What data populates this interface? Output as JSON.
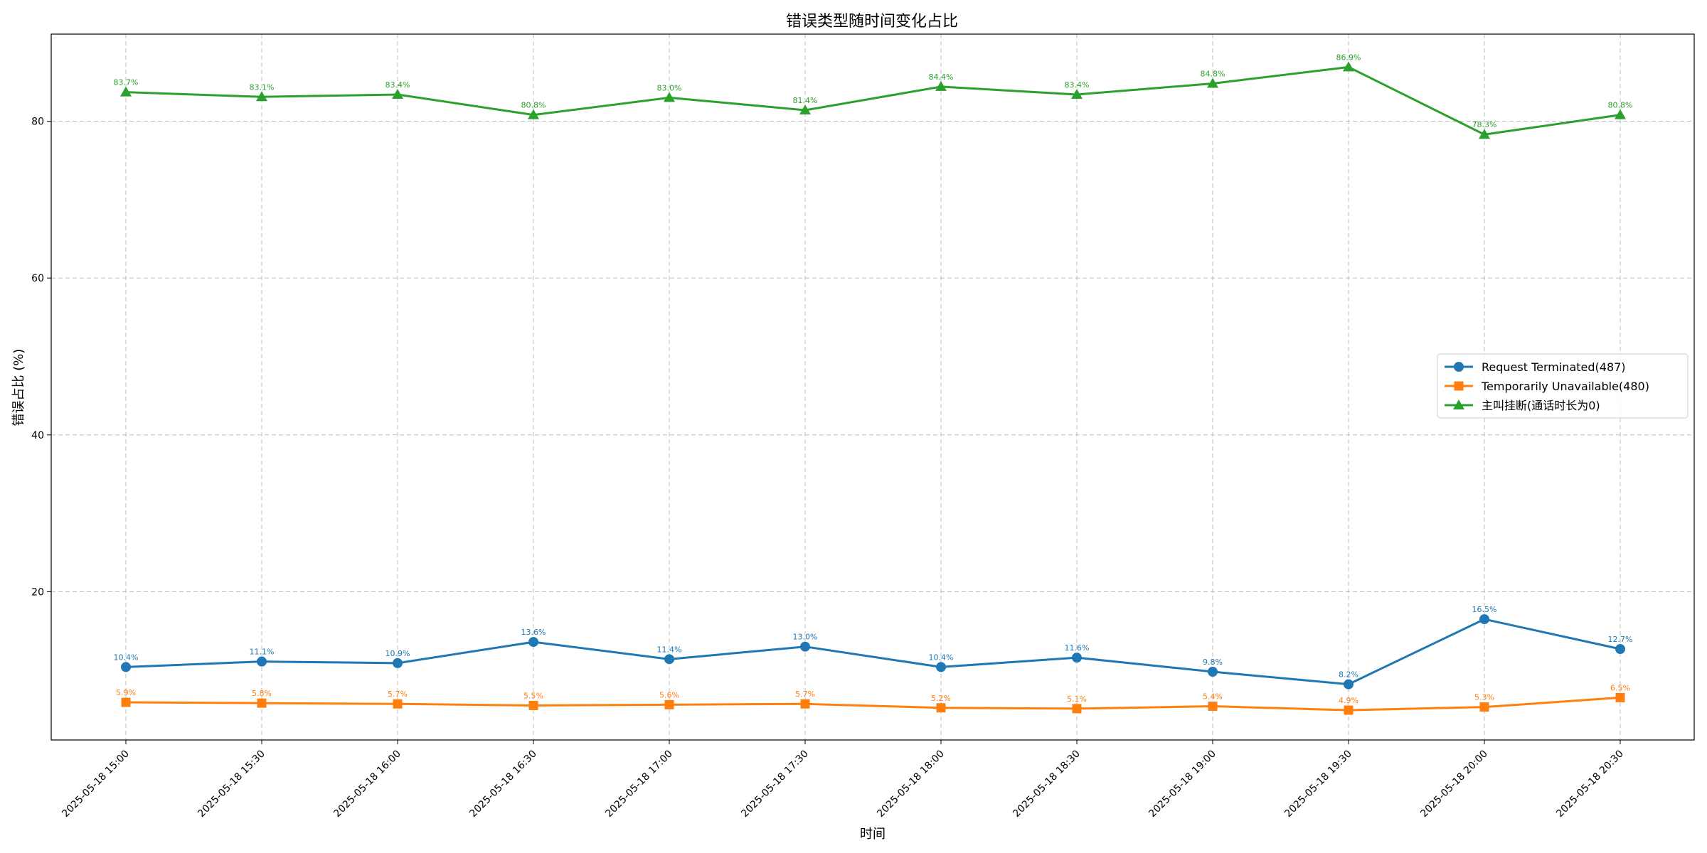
{
  "chart_data": {
    "type": "line",
    "title": "错误类型随时间变化占比",
    "xlabel": "时间",
    "ylabel": "错误占比 (%)",
    "x": [
      "2025-05-18 15:00",
      "2025-05-18 15:30",
      "2025-05-18 16:00",
      "2025-05-18 16:30",
      "2025-05-18 17:00",
      "2025-05-18 17:30",
      "2025-05-18 18:00",
      "2025-05-18 18:30",
      "2025-05-18 19:00",
      "2025-05-18 19:30",
      "2025-05-18 20:00",
      "2025-05-18 20:30"
    ],
    "yticks": [
      20,
      40,
      60,
      80
    ],
    "ylim": [
      1.1,
      91.1
    ],
    "grid": true,
    "legend_position": "center-right",
    "series": [
      {
        "name": "Request Terminated(487)",
        "color": "#1f77b4",
        "marker": "circle",
        "values": [
          10.4,
          11.1,
          10.9,
          13.6,
          11.4,
          13.0,
          10.4,
          11.6,
          9.8,
          8.2,
          16.5,
          12.7
        ],
        "labels": [
          "10.4%",
          "11.1%",
          "10.9%",
          "13.6%",
          "11.4%",
          "13.0%",
          "10.4%",
          "11.6%",
          "9.8%",
          "8.2%",
          "16.5%",
          "12.7%"
        ]
      },
      {
        "name": "Temporarily Unavailable(480)",
        "color": "#ff7f0e",
        "marker": "square",
        "values": [
          5.9,
          5.8,
          5.7,
          5.5,
          5.6,
          5.7,
          5.2,
          5.1,
          5.4,
          4.9,
          5.3,
          6.5
        ],
        "labels": [
          "5.9%",
          "5.8%",
          "5.7%",
          "5.5%",
          "5.6%",
          "5.7%",
          "5.2%",
          "5.1%",
          "5.4%",
          "4.9%",
          "5.3%",
          "6.5%"
        ]
      },
      {
        "name": "主叫挂断(通话时长为0)",
        "color": "#2ca02c",
        "marker": "triangle",
        "values": [
          83.7,
          83.1,
          83.4,
          80.8,
          83.0,
          81.4,
          84.4,
          83.4,
          84.8,
          86.9,
          78.3,
          80.8
        ],
        "labels": [
          "83.7%",
          "83.1%",
          "83.4%",
          "80.8%",
          "83.0%",
          "81.4%",
          "84.4%",
          "83.4%",
          "84.8%",
          "86.9%",
          "78.3%",
          "80.8%"
        ]
      }
    ]
  }
}
